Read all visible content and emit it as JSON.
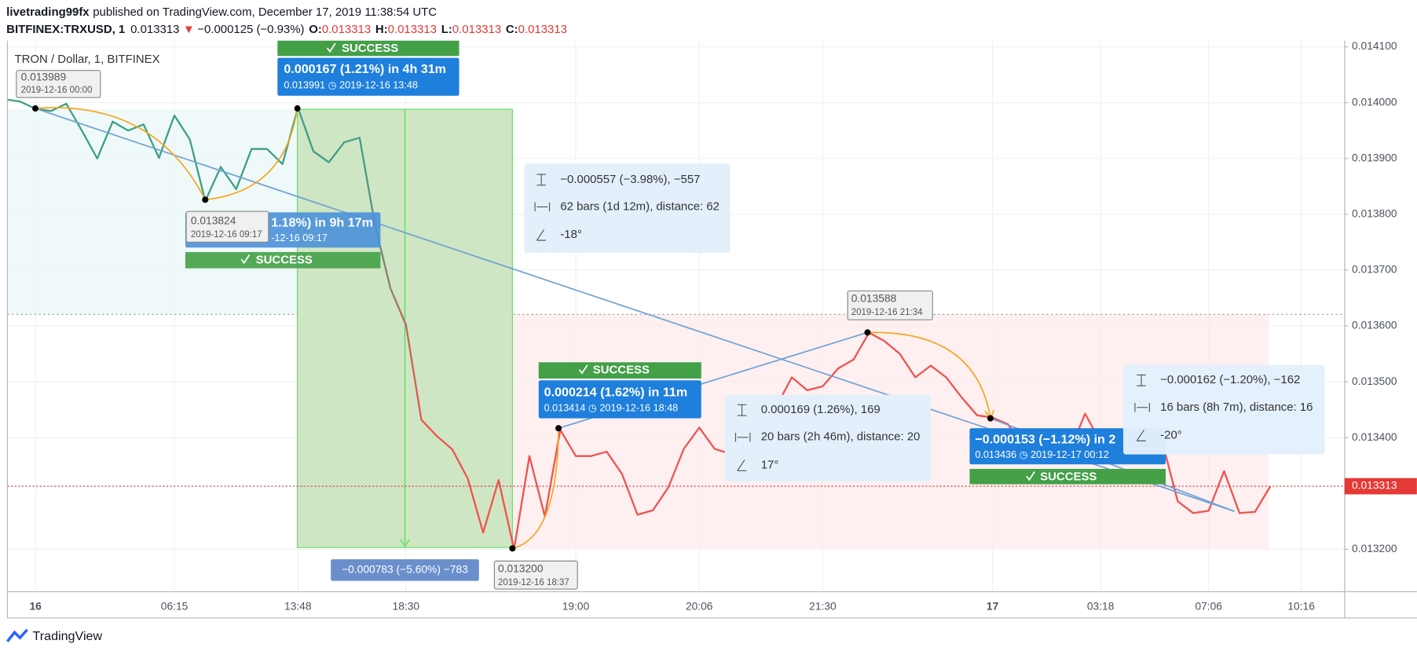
{
  "header": {
    "author": "livetrading99fx",
    "published": "published on TradingView.com, December 17, 2019 11:38:54 UTC",
    "symbol": "BITFINEX:TRXUSD, 1",
    "last": "0.013313",
    "change_arrow": "▼",
    "change": "−0.000125 (−0.93%)",
    "ohlc": [
      {
        "label": "O:",
        "value": "0.013313"
      },
      {
        "label": "H:",
        "value": "0.013313"
      },
      {
        "label": "L:",
        "value": "0.013313"
      },
      {
        "label": "C:",
        "value": "0.013313"
      }
    ]
  },
  "chart_data": {
    "type": "line",
    "title": "TRON / Dollar, 1, BITFINEX",
    "categories": [
      null,
      null,
      "16",
      null,
      null,
      null,
      null,
      null,
      null,
      null,
      null,
      "06:15",
      null,
      null,
      null,
      null,
      null,
      null,
      null,
      "13:48",
      null,
      null,
      null,
      null,
      null,
      null,
      "18:30",
      null,
      null,
      null,
      null,
      null,
      null,
      null,
      null,
      null,
      null,
      "19:00",
      null,
      null,
      null,
      null,
      null,
      null,
      null,
      "20:06",
      null,
      null,
      null,
      null,
      null,
      null,
      null,
      "21:30",
      null,
      null,
      null,
      null,
      null,
      null,
      null,
      null,
      null,
      null,
      "17",
      null,
      null,
      null,
      null,
      null,
      null,
      "03:18",
      null,
      null,
      null,
      null,
      null,
      null,
      "07:06",
      null,
      null,
      null,
      null,
      null,
      "10:16"
    ],
    "series": [
      {
        "colors": [
          "#3e9f86",
          "#ef5350"
        ],
        "values": [
          0.014006,
          0.014002,
          0.013989,
          0.013985,
          0.013998,
          0.01395,
          0.0139,
          0.013966,
          0.01395,
          0.013961,
          0.013901,
          0.013977,
          0.013934,
          0.013824,
          0.013885,
          0.013845,
          0.013917,
          0.013917,
          0.01389,
          0.013991,
          0.013913,
          0.013893,
          0.013929,
          0.013937,
          0.01378,
          0.013667,
          0.013602,
          0.013432,
          0.013403,
          0.013379,
          0.013327,
          0.01323,
          0.013324,
          0.0132,
          0.013367,
          0.013259,
          0.013414,
          0.013367,
          0.013367,
          0.013375,
          0.013335,
          0.013262,
          0.01327,
          0.013311,
          0.01338,
          0.013418,
          0.01338,
          0.013371,
          0.01344,
          0.013424,
          0.013456,
          0.013508,
          0.013485,
          0.013492,
          0.013524,
          0.01354,
          0.013588,
          0.013573,
          0.01355,
          0.013508,
          0.013529,
          0.013508,
          0.013472,
          0.01344,
          0.013436,
          0.013424,
          0.013384,
          0.013375,
          0.013408,
          0.013375,
          0.013443,
          0.013392,
          0.013384,
          0.013411,
          0.0134,
          0.013392,
          0.013286,
          0.013265,
          0.013269,
          0.01334,
          0.013265,
          0.013267,
          0.013313,
          null,
          null
        ]
      }
    ],
    "ylim": [
      0.013124,
      0.014111
    ],
    "yticks": [
      {
        "value": 0.0132,
        "label": "0.013200"
      },
      {
        "value": 0.0134,
        "label": "0.013400"
      },
      {
        "value": 0.0135,
        "label": "0.013500"
      },
      {
        "value": 0.0136,
        "label": "0.013600"
      },
      {
        "value": 0.0137,
        "label": "0.013700"
      },
      {
        "value": 0.0138,
        "label": "0.013800"
      },
      {
        "value": 0.0139,
        "label": "0.013900"
      },
      {
        "value": 0.014,
        "label": "0.014000"
      },
      {
        "value": 0.0141,
        "label": "0.014100"
      }
    ],
    "grid": true,
    "last_price": {
      "value": 0.013313,
      "label": "0.013313",
      "color": "#e53935"
    }
  },
  "annotations": {
    "price_labels": [
      {
        "price": "0.013989",
        "time": "2019-12-16 00:00"
      },
      {
        "price": "0.013824",
        "time": "2019-12-16 09:17"
      },
      {
        "price": "0.013200",
        "time": "2019-12-16 18:37"
      },
      {
        "price": "0.013588",
        "time": "2019-12-16 21:34"
      }
    ],
    "callouts": [
      {
        "status": "SUCCESS",
        "line1": "0.000167 (1.21%) in 4h 31m",
        "line2": "0.013991 ◷ 2019-12-16  13:48"
      },
      {
        "status": "SUCCESS",
        "line1": "1.18%) in 9h 17m",
        "line2": "-12-16  09:17"
      },
      {
        "status": "SUCCESS",
        "line1": "0.000214 (1.62%) in 11m",
        "line2": "0.013414 ◷ 2019-12-16  18:48"
      },
      {
        "status": "SUCCESS",
        "line1": "−0.000153 (−1.12%) in 2",
        "line2": "0.013436 ◷ 2019-12-17  00:12"
      }
    ],
    "measures": [
      {
        "delta": "−0.000557 (−3.98%), −557",
        "bars": "62 bars (1d 12m), distance: 62",
        "angle": "-18°"
      },
      {
        "delta": "0.000169 (1.26%), 169",
        "bars": "20 bars (2h 46m), distance: 20",
        "angle": "17°"
      },
      {
        "delta": "−0.000162 (−1.20%), −162",
        "bars": "16 bars (8h 7m), distance: 16",
        "angle": "-20°"
      }
    ],
    "position_label": "−0.000783 (−5.60%) −783"
  },
  "footer": {
    "brand": "TradingView"
  }
}
